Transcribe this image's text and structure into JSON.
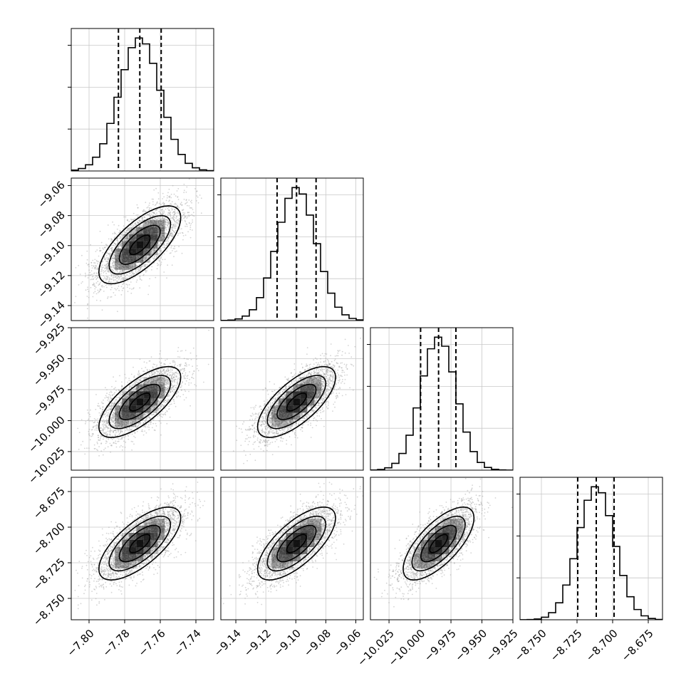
{
  "chart_data": {
    "type": "corner",
    "grid": true,
    "colors": {
      "hist": "#000000",
      "contour": "#000000",
      "density": "#000000",
      "samples": "#a0a0a0",
      "grid": "#c8c8c8",
      "quantile": "#000000"
    },
    "params": [
      {
        "index": 0,
        "range": [
          -7.81,
          -7.73
        ],
        "ticks": [
          -7.8,
          -7.78,
          -7.76,
          -7.74
        ],
        "tick_labels": [
          "−7.80",
          "−7.78",
          "−7.76",
          "−7.74"
        ],
        "hist_ticks": [
          1,
          2,
          3
        ],
        "median": -7.7715,
        "q16": -7.7835,
        "q84": -7.7595,
        "mean": -7.7715,
        "sigma": 0.0115
      },
      {
        "index": 1,
        "range": [
          -9.15,
          -9.055
        ],
        "ticks": [
          -9.14,
          -9.12,
          -9.1,
          -9.08,
          -9.06
        ],
        "tick_labels": [
          "−9.14",
          "−9.12",
          "−9.10",
          "−9.08",
          "−9.06"
        ],
        "hist_ticks": [
          1,
          2,
          3
        ],
        "median": -9.0995,
        "q16": -9.1125,
        "q84": -9.0865,
        "mean": -9.0995,
        "sigma": 0.013
      },
      {
        "index": 2,
        "range": [
          -10.04,
          -9.925
        ],
        "ticks": [
          -10.025,
          -10.0,
          -9.975,
          -9.95,
          -9.925
        ],
        "tick_labels": [
          "−10.025",
          "−10.000",
          "−9.975",
          "−9.950",
          "−9.925"
        ],
        "hist_ticks": [
          1,
          2,
          3
        ],
        "median": -9.985,
        "q16": -9.9995,
        "q84": -9.971,
        "mean": -9.985,
        "sigma": 0.0143
      },
      {
        "index": 3,
        "range": [
          -8.765,
          -8.665
        ],
        "ticks": [
          -8.75,
          -8.725,
          -8.7,
          -8.675
        ],
        "tick_labels": [
          "−8.750",
          "−8.725",
          "−8.700",
          "−8.675"
        ],
        "hist_ticks": [
          1,
          2,
          3
        ],
        "median": -8.7115,
        "q16": -8.7245,
        "q84": -8.699,
        "mean": -8.7115,
        "sigma": 0.0128
      }
    ],
    "correlation": 0.7,
    "contour_levels": [
      0.5,
      1.0,
      1.5,
      2.0
    ],
    "hist_bins": 20
  }
}
